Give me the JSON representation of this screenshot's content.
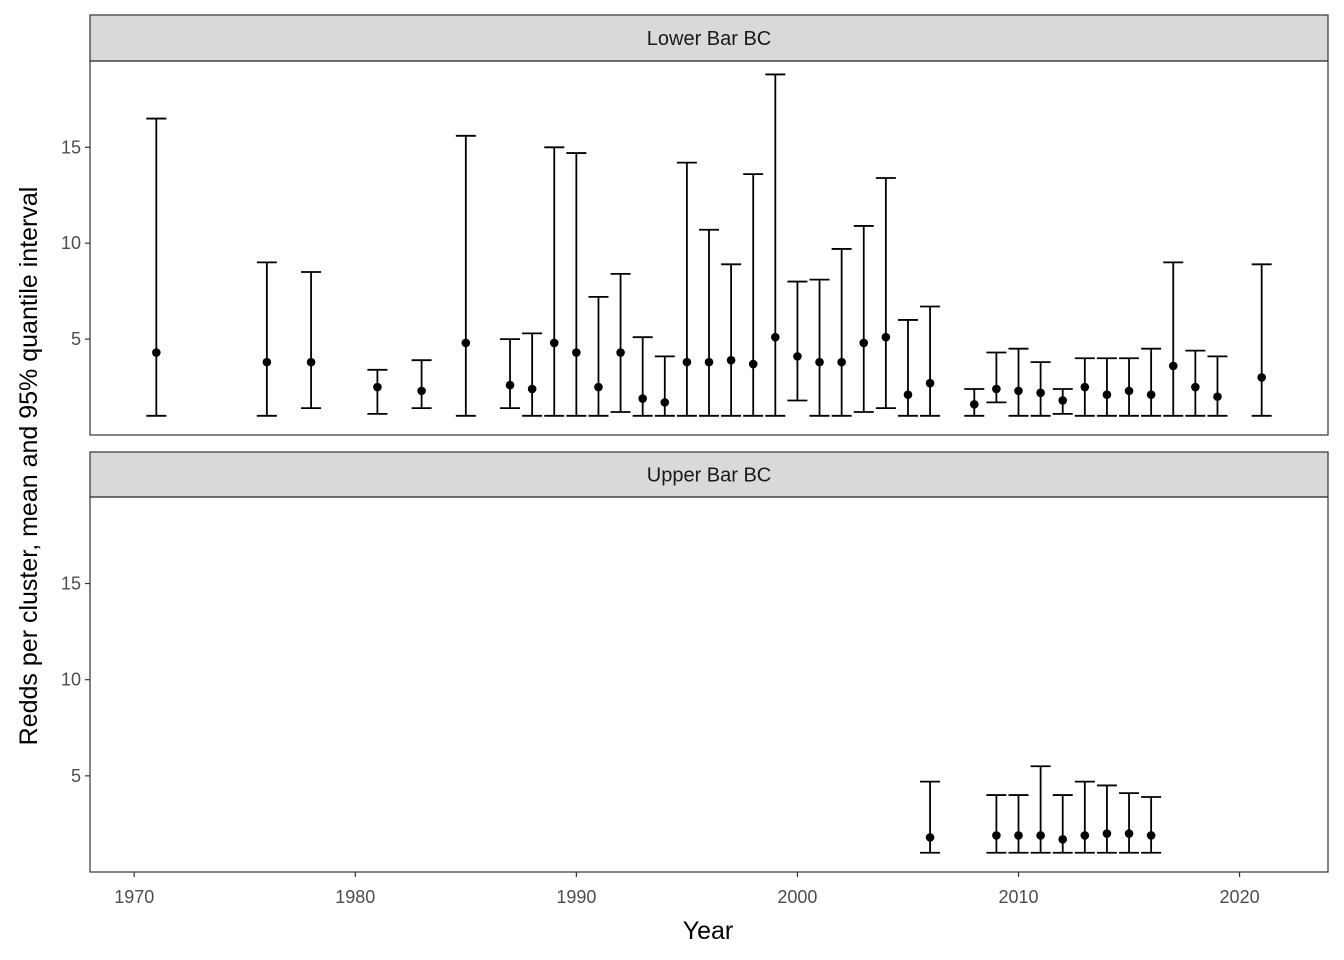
{
  "chart_data": {
    "type": "errorbar",
    "ylabel": "Redds per cluster, mean and 95% quantile interval",
    "xlabel": "Year",
    "xlim": [
      1968,
      2024
    ],
    "ylim": [
      0,
      19.5
    ],
    "x_ticks": [
      "1970",
      "1980",
      "1990",
      "2000",
      "2010",
      "2020"
    ],
    "y_ticks": [
      "5",
      "10",
      "15"
    ],
    "grid": false,
    "panels": [
      {
        "name": "Lower Bar BC",
        "points": [
          {
            "x": 1971,
            "mean": 4.3,
            "low": 1.0,
            "high": 16.5
          },
          {
            "x": 1976,
            "mean": 3.8,
            "low": 1.0,
            "high": 9.0
          },
          {
            "x": 1978,
            "mean": 3.8,
            "low": 1.4,
            "high": 8.5
          },
          {
            "x": 1981,
            "mean": 2.5,
            "low": 1.1,
            "high": 3.4
          },
          {
            "x": 1983,
            "mean": 2.3,
            "low": 1.4,
            "high": 3.9
          },
          {
            "x": 1985,
            "mean": 4.8,
            "low": 1.0,
            "high": 15.6
          },
          {
            "x": 1987,
            "mean": 2.6,
            "low": 1.4,
            "high": 5.0
          },
          {
            "x": 1988,
            "mean": 2.4,
            "low": 1.0,
            "high": 5.3
          },
          {
            "x": 1989,
            "mean": 4.8,
            "low": 1.0,
            "high": 15.0
          },
          {
            "x": 1990,
            "mean": 4.3,
            "low": 1.0,
            "high": 14.7
          },
          {
            "x": 1991,
            "mean": 2.5,
            "low": 1.0,
            "high": 7.2
          },
          {
            "x": 1992,
            "mean": 4.3,
            "low": 1.2,
            "high": 8.4
          },
          {
            "x": 1993,
            "mean": 1.9,
            "low": 1.0,
            "high": 5.1
          },
          {
            "x": 1994,
            "mean": 1.7,
            "low": 1.0,
            "high": 4.1
          },
          {
            "x": 1995,
            "mean": 3.8,
            "low": 1.0,
            "high": 14.2
          },
          {
            "x": 1996,
            "mean": 3.8,
            "low": 1.0,
            "high": 10.7
          },
          {
            "x": 1997,
            "mean": 3.9,
            "low": 1.0,
            "high": 8.9
          },
          {
            "x": 1998,
            "mean": 3.7,
            "low": 1.0,
            "high": 13.6
          },
          {
            "x": 1999,
            "mean": 5.1,
            "low": 1.0,
            "high": 18.8
          },
          {
            "x": 2000,
            "mean": 4.1,
            "low": 1.8,
            "high": 8.0
          },
          {
            "x": 2001,
            "mean": 3.8,
            "low": 1.0,
            "high": 8.1
          },
          {
            "x": 2002,
            "mean": 3.8,
            "low": 1.0,
            "high": 9.7
          },
          {
            "x": 2003,
            "mean": 4.8,
            "low": 1.2,
            "high": 10.9
          },
          {
            "x": 2004,
            "mean": 5.1,
            "low": 1.4,
            "high": 13.4
          },
          {
            "x": 2005,
            "mean": 2.1,
            "low": 1.0,
            "high": 6.0
          },
          {
            "x": 2006,
            "mean": 2.7,
            "low": 1.0,
            "high": 6.7
          },
          {
            "x": 2008,
            "mean": 1.6,
            "low": 1.0,
            "high": 2.4
          },
          {
            "x": 2009,
            "mean": 2.4,
            "low": 1.7,
            "high": 4.3
          },
          {
            "x": 2010,
            "mean": 2.3,
            "low": 1.0,
            "high": 4.5
          },
          {
            "x": 2011,
            "mean": 2.2,
            "low": 1.0,
            "high": 3.8
          },
          {
            "x": 2012,
            "mean": 1.8,
            "low": 1.1,
            "high": 2.4
          },
          {
            "x": 2013,
            "mean": 2.5,
            "low": 1.0,
            "high": 4.0
          },
          {
            "x": 2014,
            "mean": 2.1,
            "low": 1.0,
            "high": 4.0
          },
          {
            "x": 2015,
            "mean": 2.3,
            "low": 1.0,
            "high": 4.0
          },
          {
            "x": 2016,
            "mean": 2.1,
            "low": 1.0,
            "high": 4.5
          },
          {
            "x": 2017,
            "mean": 3.6,
            "low": 1.0,
            "high": 9.0
          },
          {
            "x": 2018,
            "mean": 2.5,
            "low": 1.0,
            "high": 4.4
          },
          {
            "x": 2019,
            "mean": 2.0,
            "low": 1.0,
            "high": 4.1
          },
          {
            "x": 2021,
            "mean": 3.0,
            "low": 1.0,
            "high": 8.9
          }
        ]
      },
      {
        "name": "Upper Bar BC",
        "points": [
          {
            "x": 2006,
            "mean": 1.8,
            "low": 1.0,
            "high": 4.7
          },
          {
            "x": 2009,
            "mean": 1.9,
            "low": 1.0,
            "high": 4.0
          },
          {
            "x": 2010,
            "mean": 1.9,
            "low": 1.0,
            "high": 4.0
          },
          {
            "x": 2011,
            "mean": 1.9,
            "low": 1.0,
            "high": 5.5
          },
          {
            "x": 2012,
            "mean": 1.7,
            "low": 1.0,
            "high": 4.0
          },
          {
            "x": 2013,
            "mean": 1.9,
            "low": 1.0,
            "high": 4.7
          },
          {
            "x": 2014,
            "mean": 2.0,
            "low": 1.0,
            "high": 4.5
          },
          {
            "x": 2015,
            "mean": 2.0,
            "low": 1.0,
            "high": 4.1
          },
          {
            "x": 2016,
            "mean": 1.9,
            "low": 1.0,
            "high": 3.9
          }
        ]
      }
    ]
  }
}
